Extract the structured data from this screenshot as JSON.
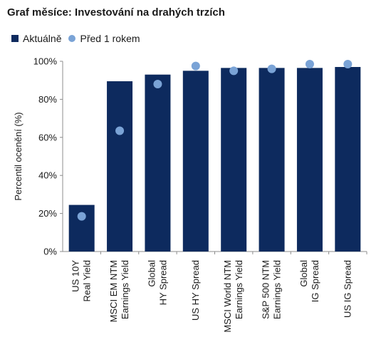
{
  "chart_data": {
    "type": "bar",
    "title": "Graf měsíce: Investování na drahých trzích",
    "ylabel": "Percentil ocenění (%)",
    "xlabel": "",
    "ylim": [
      0,
      100
    ],
    "yticks": [
      0,
      20,
      40,
      60,
      80,
      100
    ],
    "ytick_labels": [
      "0%",
      "20%",
      "40%",
      "60%",
      "80%",
      "100%"
    ],
    "grid": false,
    "legend_position": "top-left",
    "categories": [
      [
        "US 10Y",
        "Real Yield"
      ],
      [
        "MSCI EM NTM",
        "Earnings Yield"
      ],
      [
        "Global",
        "HY Spread"
      ],
      [
        "US HY Spread"
      ],
      [
        "MSCI World NTM",
        "Earnings Yield"
      ],
      [
        "S&P 500 NTM",
        "Earnings Yield"
      ],
      [
        "Global",
        "IG Spread"
      ],
      [
        "US IG Spread"
      ]
    ],
    "series": [
      {
        "name": "Aktuálně",
        "kind": "bar",
        "color": "#0d2a5e",
        "values": [
          24.5,
          89.5,
          93,
          95,
          96.5,
          96.5,
          96.5,
          97
        ]
      },
      {
        "name": "Před 1 rokem",
        "kind": "dot",
        "color": "#7aa3d6",
        "values": [
          18.5,
          63.5,
          88,
          97.5,
          95,
          96,
          98.5,
          98.5
        ]
      }
    ]
  }
}
